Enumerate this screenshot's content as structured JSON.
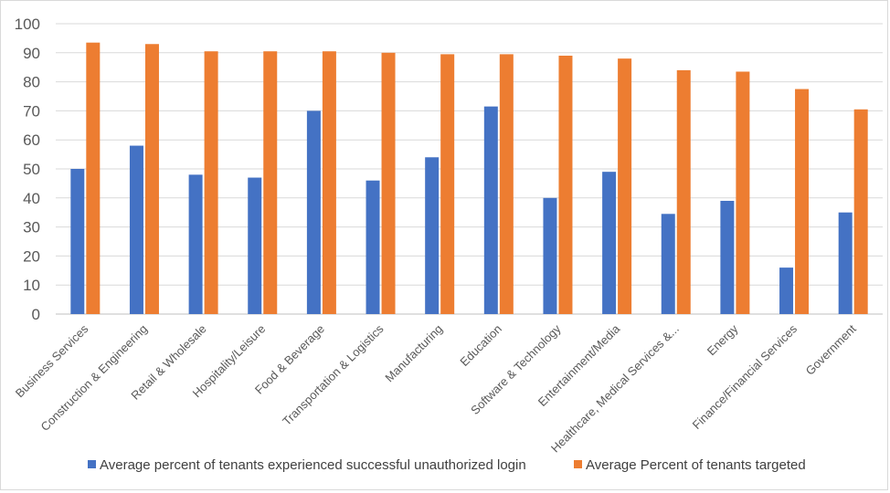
{
  "chart_data": {
    "type": "bar",
    "title": "",
    "xlabel": "",
    "ylabel": "",
    "ylim": [
      0,
      100
    ],
    "yticks": [
      0,
      10,
      20,
      30,
      40,
      50,
      60,
      70,
      80,
      90,
      100
    ],
    "grid": true,
    "legend_position": "bottom",
    "categories": [
      "Business Services",
      "Construction & Engineering",
      "Retail & Wholesale",
      "Hospitality/Leisure",
      "Food & Beverage",
      "Transportation & Logistics",
      "Manufacturing",
      "Education",
      "Software & Technology",
      "Entertainment/Media",
      "Healthcare, Medical Services &...",
      "Energy",
      "Finance/Financial Services",
      "Government"
    ],
    "series": [
      {
        "name": "Average percent of tenants experienced successful unauthorized login",
        "color": "#4472c4",
        "values": [
          50,
          58,
          48,
          47,
          70,
          46,
          54,
          71.5,
          40,
          49,
          34.5,
          39,
          16,
          35
        ]
      },
      {
        "name": "Average Percent of tenants targeted",
        "color": "#ed7d31",
        "values": [
          93.5,
          93,
          90.5,
          90.5,
          90.5,
          90,
          89.5,
          89.5,
          89,
          88,
          84,
          83.5,
          77.5,
          70.5
        ]
      }
    ]
  }
}
